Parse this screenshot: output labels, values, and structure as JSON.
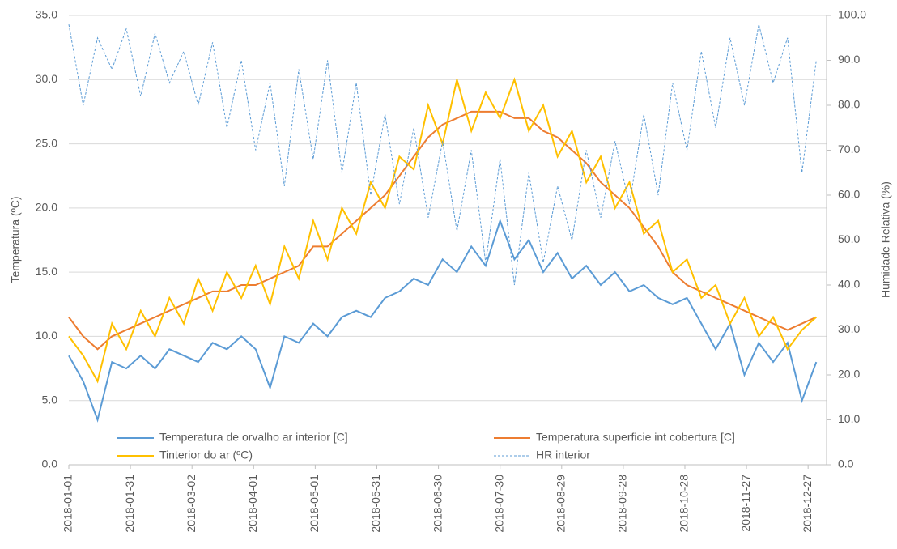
{
  "chart_data": {
    "type": "line",
    "y_label": "Temperatura (ºC)",
    "y2_label": "Humidade Relativa (%)",
    "x": [
      "2018-01-01",
      "2018-01-08",
      "2018-01-15",
      "2018-01-22",
      "2018-01-29",
      "2018-02-05",
      "2018-02-12",
      "2018-02-19",
      "2018-02-26",
      "2018-03-05",
      "2018-03-12",
      "2018-03-19",
      "2018-03-26",
      "2018-04-02",
      "2018-04-09",
      "2018-04-16",
      "2018-04-23",
      "2018-04-30",
      "2018-05-07",
      "2018-05-14",
      "2018-05-21",
      "2018-05-28",
      "2018-06-04",
      "2018-06-11",
      "2018-06-18",
      "2018-06-25",
      "2018-07-02",
      "2018-07-09",
      "2018-07-16",
      "2018-07-23",
      "2018-07-30",
      "2018-08-06",
      "2018-08-13",
      "2018-08-20",
      "2018-08-27",
      "2018-09-03",
      "2018-09-10",
      "2018-09-17",
      "2018-09-24",
      "2018-10-01",
      "2018-10-08",
      "2018-10-15",
      "2018-10-22",
      "2018-10-29",
      "2018-11-05",
      "2018-11-12",
      "2018-11-19",
      "2018-11-26",
      "2018-12-03",
      "2018-12-10",
      "2018-12-17",
      "2018-12-24",
      "2018-12-31"
    ],
    "xlim": [
      "2018-01-01",
      "2019-01-05"
    ],
    "xticks": [
      "2018-01-01",
      "2018-01-31",
      "2018-03-02",
      "2018-04-01",
      "2018-05-01",
      "2018-05-31",
      "2018-06-30",
      "2018-07-30",
      "2018-08-29",
      "2018-09-28",
      "2018-10-28",
      "2018-11-27",
      "2018-12-27"
    ],
    "ylim": [
      0,
      35
    ],
    "yticks": [
      {
        "value": 0,
        "label": "0.0"
      },
      {
        "value": 5,
        "label": "5.0"
      },
      {
        "value": 10,
        "label": "10.0"
      },
      {
        "value": 15,
        "label": "15.0"
      },
      {
        "value": 20,
        "label": "20.0"
      },
      {
        "value": 25,
        "label": "25.0"
      },
      {
        "value": 30,
        "label": "30.0"
      },
      {
        "value": 35,
        "label": "35.0"
      }
    ],
    "y2lim": [
      0,
      100
    ],
    "y2ticks": [
      {
        "value": 0,
        "label": "0.0"
      },
      {
        "value": 10,
        "label": "10.0"
      },
      {
        "value": 20,
        "label": "20.0"
      },
      {
        "value": 30,
        "label": "30.0"
      },
      {
        "value": 40,
        "label": "40.0"
      },
      {
        "value": 50,
        "label": "50.0"
      },
      {
        "value": 60,
        "label": "60.0"
      },
      {
        "value": 70,
        "label": "70.0"
      },
      {
        "value": 80,
        "label": "80.0"
      },
      {
        "value": 90,
        "label": "90.0"
      },
      {
        "value": 100,
        "label": "100.0"
      }
    ],
    "grid": true,
    "legend": "bottom",
    "series": [
      {
        "name": "Temperatura de orvalho ar interior [C]",
        "color": "#5b9bd5",
        "values": [
          8.5,
          6.5,
          3.5,
          8,
          7.5,
          8.5,
          7.5,
          9,
          8.5,
          8,
          9.5,
          9,
          10,
          9,
          6,
          10,
          9.5,
          11,
          10,
          11.5,
          12,
          11.5,
          13,
          13.5,
          14.5,
          14,
          16,
          15,
          17,
          15.5,
          19,
          16,
          17.5,
          15,
          16.5,
          14.5,
          15.5,
          14,
          15,
          13.5,
          14,
          13,
          12.5,
          13,
          11,
          9,
          11,
          7,
          9.5,
          8,
          9.5,
          5,
          8
        ]
      },
      {
        "name": "Temperatura superficie int cobertura [C]",
        "color": "#ed7d31",
        "values": [
          11.5,
          10,
          9,
          10,
          10.5,
          11,
          11.5,
          12,
          12.5,
          13,
          13.5,
          13.5,
          14,
          14,
          14.5,
          15,
          15.5,
          17,
          17,
          18,
          19,
          20,
          21,
          22.5,
          24,
          25.5,
          26.5,
          27,
          27.5,
          27.5,
          27.5,
          27,
          27,
          26,
          25.5,
          24.5,
          23.5,
          22,
          21,
          20,
          18.5,
          17,
          15,
          14,
          13.5,
          13,
          12.5,
          12,
          11.5,
          11,
          10.5,
          11,
          11.5
        ]
      },
      {
        "name": "Tinterior do ar (ºC)",
        "color": "#ffc000",
        "values": [
          10,
          8.5,
          6.5,
          11,
          9,
          12,
          10,
          13,
          11,
          14.5,
          12,
          15,
          13,
          15.5,
          12.5,
          17,
          14.5,
          19,
          16,
          20,
          18,
          22,
          20,
          24,
          23,
          28,
          25,
          30,
          26,
          29,
          27,
          30,
          26,
          28,
          24,
          26,
          22,
          24,
          20,
          22,
          18,
          19,
          15,
          16,
          13,
          14,
          11,
          13,
          10,
          11.5,
          9,
          10.5,
          11.5
        ]
      },
      {
        "name": "HR interior",
        "color": "#5b9bd5",
        "axis": "y2",
        "dashed": true,
        "values": [
          98,
          80,
          95,
          88,
          97,
          82,
          96,
          85,
          92,
          80,
          94,
          75,
          90,
          70,
          85,
          62,
          88,
          68,
          90,
          65,
          85,
          60,
          78,
          58,
          75,
          55,
          72,
          52,
          70,
          45,
          68,
          40,
          65,
          45,
          62,
          50,
          70,
          55,
          72,
          58,
          78,
          60,
          85,
          70,
          92,
          75,
          95,
          80,
          98,
          85,
          95,
          65,
          90
        ]
      }
    ]
  }
}
